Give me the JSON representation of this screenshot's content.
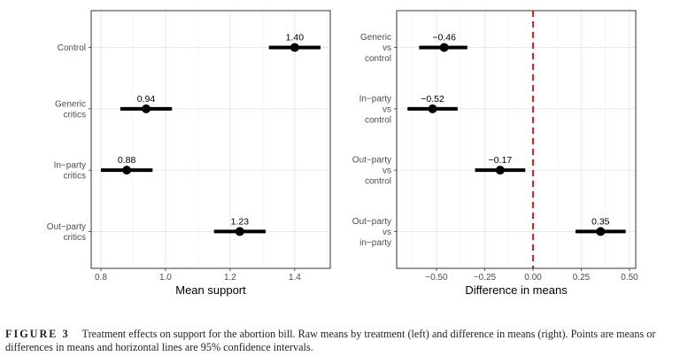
{
  "chart_data": [
    {
      "type": "scatter",
      "subtype": "dot-and-whisker",
      "title": "",
      "xlabel": "Mean support",
      "ylabel": "",
      "xlim": [
        0.77,
        1.51
      ],
      "xticks": [
        0.8,
        1.0,
        1.2,
        1.4
      ],
      "xtick_labels": [
        "0.8",
        "1.0",
        "1.2",
        "1.4"
      ],
      "grid": true,
      "categories": [
        [
          "Control"
        ],
        [
          "Generic",
          "critics"
        ],
        [
          "In−party",
          "critics"
        ],
        [
          "Out−party",
          "critics"
        ]
      ],
      "points": [
        {
          "label": "1.40",
          "value": 1.4,
          "ci_low": 1.32,
          "ci_high": 1.48
        },
        {
          "label": "0.94",
          "value": 0.94,
          "ci_low": 0.86,
          "ci_high": 1.02
        },
        {
          "label": "0.88",
          "value": 0.88,
          "ci_low": 0.8,
          "ci_high": 0.96
        },
        {
          "label": "1.23",
          "value": 1.23,
          "ci_low": 1.15,
          "ci_high": 1.31
        }
      ]
    },
    {
      "type": "scatter",
      "subtype": "dot-and-whisker",
      "title": "",
      "xlabel": "Difference in means",
      "ylabel": "",
      "xlim": [
        -0.706,
        0.532
      ],
      "xticks": [
        -0.5,
        -0.25,
        0,
        0.25,
        0.5
      ],
      "xtick_labels": [
        "−0.50",
        "−0.25",
        "0.00",
        "0.25",
        "0.50"
      ],
      "grid": true,
      "reference_line": {
        "x": 0,
        "style": "dashed",
        "color": "#e31a1c"
      },
      "categories": [
        [
          "Generic",
          "vs",
          "control"
        ],
        [
          "In−party",
          "vs",
          "control"
        ],
        [
          "Out−party",
          "vs",
          "control"
        ],
        [
          "Out−party",
          "vs",
          "in−party"
        ]
      ],
      "points": [
        {
          "label": "−0.46",
          "value": -0.46,
          "ci_low": -0.59,
          "ci_high": -0.34
        },
        {
          "label": "−0.52",
          "value": -0.52,
          "ci_low": -0.65,
          "ci_high": -0.39
        },
        {
          "label": "−0.17",
          "value": -0.17,
          "ci_low": -0.3,
          "ci_high": -0.04
        },
        {
          "label": "0.35",
          "value": 0.35,
          "ci_low": 0.22,
          "ci_high": 0.48
        }
      ]
    }
  ],
  "caption": {
    "figure_label": "FIGURE 3",
    "text": "Treatment effects on support for the abortion bill. Raw means by treatment (left) and difference in means (right). Points are means or differences in means and horizontal lines are 95% confidence intervals."
  }
}
